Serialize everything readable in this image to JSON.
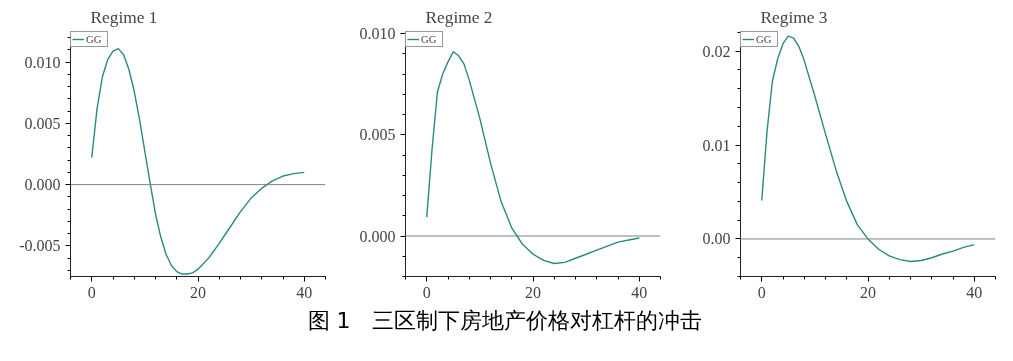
{
  "chart_data": [
    {
      "type": "line",
      "title": "Regime 1",
      "annotations": [
        "图 1　三区制下房地产价格对杠杆的冲击"
      ],
      "x": [
        0,
        1,
        2,
        3,
        4,
        5,
        6,
        7,
        8,
        9,
        10,
        11,
        12,
        13,
        14,
        15,
        16,
        17,
        18,
        19,
        20,
        22,
        24,
        26,
        28,
        30,
        32,
        33,
        34,
        36,
        38,
        40
      ],
      "series": [
        {
          "name": "GG",
          "color": "#2a8a80",
          "values": [
            0.0022,
            0.0062,
            0.0088,
            0.0102,
            0.0109,
            0.0111,
            0.0106,
            0.0094,
            0.0076,
            0.0053,
            0.0027,
            0.0001,
            -0.0024,
            -0.0043,
            -0.0057,
            -0.0066,
            -0.0071,
            -0.0073,
            -0.0073,
            -0.0072,
            -0.0069,
            -0.006,
            -0.0048,
            -0.0035,
            -0.0022,
            -0.0011,
            -0.0003,
            0.0,
            0.0003,
            0.0007,
            0.0009,
            0.001
          ]
        }
      ],
      "xlim": [
        -4,
        44
      ],
      "ylim": [
        -0.0075,
        0.0125
      ],
      "xticks": [
        0,
        20,
        40
      ],
      "yticks": [
        {
          "value": -0.005,
          "label": "-0.005"
        },
        {
          "value": 0,
          "label": "0.000"
        },
        {
          "value": 0.005,
          "label": "0.005"
        },
        {
          "value": 0.01,
          "label": "0.010"
        }
      ],
      "ref_lines": [
        {
          "axis": "y",
          "value": 0,
          "label": null,
          "color": "#808080"
        }
      ],
      "legend": "top left",
      "grid": false,
      "marker": "none",
      "line_style": "solid"
    },
    {
      "type": "line",
      "title": "Regime 2",
      "x": [
        0,
        1,
        2,
        3,
        4,
        5,
        6,
        7,
        8,
        10,
        12,
        14,
        16,
        17,
        18,
        20,
        22,
        24,
        26,
        28,
        30,
        32,
        34,
        36,
        38,
        40
      ],
      "series": [
        {
          "name": "GG",
          "color": "#2a8a80",
          "values": [
            0.00093,
            0.0043,
            0.0071,
            0.008,
            0.0086,
            0.0091,
            0.0089,
            0.0085,
            0.0077,
            0.0058,
            0.0036,
            0.0017,
            0.0004,
            0.0,
            -0.0004,
            -0.0009,
            -0.0012,
            -0.00136,
            -0.0013,
            -0.0011,
            -0.0009,
            -0.0007,
            -0.0005,
            -0.0003,
            -0.0002,
            -0.0001
          ]
        }
      ],
      "xlim": [
        -4,
        44
      ],
      "ylim": [
        -0.002,
        0.0101
      ],
      "xticks": [
        0,
        20,
        40
      ],
      "yticks": [
        {
          "value": 0,
          "label": "0.000"
        },
        {
          "value": 0.005,
          "label": "0.005"
        },
        {
          "value": 0.01,
          "label": "0.010"
        }
      ],
      "ref_lines": [
        {
          "axis": "y",
          "value": 0,
          "label": null,
          "color": "#808080"
        }
      ],
      "legend": "top left",
      "grid": false,
      "marker": "none",
      "line_style": "solid"
    },
    {
      "type": "line",
      "title": "Regime 3",
      "x": [
        0,
        1,
        2,
        3,
        4,
        5,
        6,
        7,
        8,
        10,
        12,
        14,
        16,
        18,
        20,
        22,
        24,
        26,
        28,
        30,
        32,
        34,
        36,
        38,
        40
      ],
      "series": [
        {
          "name": "GG",
          "color": "#2a8a80",
          "values": [
            0.0041,
            0.0115,
            0.0168,
            0.0192,
            0.0208,
            0.0216,
            0.0214,
            0.0205,
            0.019,
            0.0152,
            0.0112,
            0.0073,
            0.004,
            0.0015,
            0.0,
            -0.0011,
            -0.0018,
            -0.0022,
            -0.0024,
            -0.0023,
            -0.002,
            -0.0016,
            -0.0013,
            -0.0009,
            -0.0006
          ]
        }
      ],
      "xlim": [
        -4,
        44
      ],
      "ylim": [
        -0.004,
        0.0221
      ],
      "xticks": [
        0,
        20,
        40
      ],
      "yticks": [
        {
          "value": 0,
          "label": "0.00"
        },
        {
          "value": 0.01,
          "label": "0.01"
        },
        {
          "value": 0.02,
          "label": "0.02"
        }
      ],
      "ref_lines": [
        {
          "axis": "y",
          "value": 0,
          "label": null,
          "color": "#808080"
        }
      ],
      "legend": "top left",
      "grid": false,
      "marker": "none",
      "line_style": "solid"
    }
  ]
}
